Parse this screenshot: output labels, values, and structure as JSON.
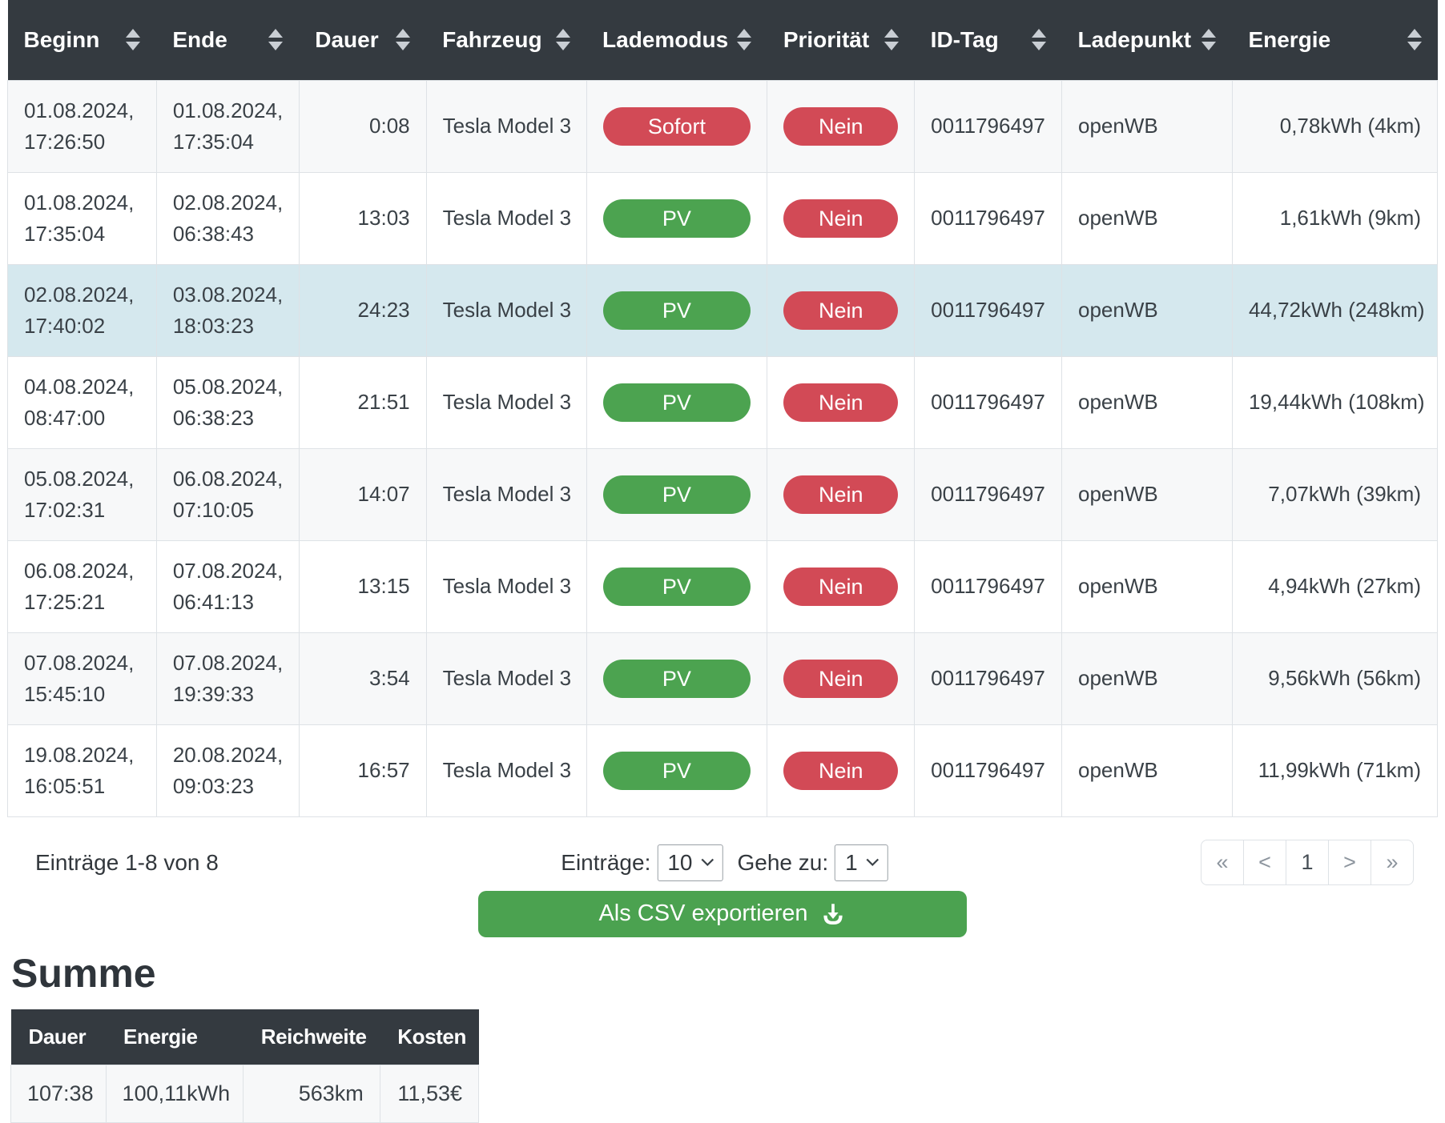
{
  "colors": {
    "header_bg": "#343a40",
    "text": "#3a4147",
    "border": "#dee2e6",
    "row_stripe": "#f7f8f9",
    "row_highlight": "#d5e8ee",
    "badge_red": "#d24a56",
    "badge_green": "#4ca350",
    "button_green": "#4ba250",
    "page_btn_text": "#8d959e",
    "page_btn_active_text": "#474f56"
  },
  "icons": {
    "header_sort": "sort-arrows-icon",
    "select_caret": "chevron-down-icon",
    "export": "download-icon"
  },
  "table": {
    "columns": [
      {
        "id": "beginn",
        "label": "Beginn",
        "width_pct": 10.41
      },
      {
        "id": "ende",
        "label": "Ende",
        "width_pct": 9.97
      },
      {
        "id": "dauer",
        "label": "Dauer",
        "width_pct": 8.9
      },
      {
        "id": "fahrzeug",
        "label": "Fahrzeug",
        "width_pct": 11.2
      },
      {
        "id": "lademodus",
        "label": "Lademodus",
        "width_pct": 12.65
      },
      {
        "id": "prioritaet",
        "label": "Priorität",
        "width_pct": 10.3
      },
      {
        "id": "id_tag",
        "label": "ID-Tag",
        "width_pct": 10.3
      },
      {
        "id": "ladepunkt",
        "label": "Ladepunkt",
        "width_pct": 11.93
      },
      {
        "id": "energie",
        "label": "Energie",
        "width_pct": 14.34
      }
    ],
    "rows": [
      {
        "beginn": "01.08.2024, 17:26:50",
        "ende": "01.08.2024, 17:35:04",
        "dauer": "0:08",
        "fahrzeug": "Tesla Model 3",
        "lademodus": {
          "label": "Sofort",
          "color": "red"
        },
        "prioritaet": {
          "label": "Nein",
          "color": "red"
        },
        "id_tag": "0011796497",
        "ladepunkt": "openWB",
        "energie": "0,78kWh (4km)",
        "highlighted": false
      },
      {
        "beginn": "01.08.2024, 17:35:04",
        "ende": "02.08.2024, 06:38:43",
        "dauer": "13:03",
        "fahrzeug": "Tesla Model 3",
        "lademodus": {
          "label": "PV",
          "color": "green"
        },
        "prioritaet": {
          "label": "Nein",
          "color": "red"
        },
        "id_tag": "0011796497",
        "ladepunkt": "openWB",
        "energie": "1,61kWh (9km)",
        "highlighted": false
      },
      {
        "beginn": "02.08.2024, 17:40:02",
        "ende": "03.08.2024, 18:03:23",
        "dauer": "24:23",
        "fahrzeug": "Tesla Model 3",
        "lademodus": {
          "label": "PV",
          "color": "green"
        },
        "prioritaet": {
          "label": "Nein",
          "color": "red"
        },
        "id_tag": "0011796497",
        "ladepunkt": "openWB",
        "energie": "44,72kWh (248km)",
        "highlighted": true
      },
      {
        "beginn": "04.08.2024, 08:47:00",
        "ende": "05.08.2024, 06:38:23",
        "dauer": "21:51",
        "fahrzeug": "Tesla Model 3",
        "lademodus": {
          "label": "PV",
          "color": "green"
        },
        "prioritaet": {
          "label": "Nein",
          "color": "red"
        },
        "id_tag": "0011796497",
        "ladepunkt": "openWB",
        "energie": "19,44kWh (108km)",
        "highlighted": false
      },
      {
        "beginn": "05.08.2024, 17:02:31",
        "ende": "06.08.2024, 07:10:05",
        "dauer": "14:07",
        "fahrzeug": "Tesla Model 3",
        "lademodus": {
          "label": "PV",
          "color": "green"
        },
        "prioritaet": {
          "label": "Nein",
          "color": "red"
        },
        "id_tag": "0011796497",
        "ladepunkt": "openWB",
        "energie": "7,07kWh (39km)",
        "highlighted": false
      },
      {
        "beginn": "06.08.2024, 17:25:21",
        "ende": "07.08.2024, 06:41:13",
        "dauer": "13:15",
        "fahrzeug": "Tesla Model 3",
        "lademodus": {
          "label": "PV",
          "color": "green"
        },
        "prioritaet": {
          "label": "Nein",
          "color": "red"
        },
        "id_tag": "0011796497",
        "ladepunkt": "openWB",
        "energie": "4,94kWh (27km)",
        "highlighted": false
      },
      {
        "beginn": "07.08.2024, 15:45:10",
        "ende": "07.08.2024, 19:39:33",
        "dauer": "3:54",
        "fahrzeug": "Tesla Model 3",
        "lademodus": {
          "label": "PV",
          "color": "green"
        },
        "prioritaet": {
          "label": "Nein",
          "color": "red"
        },
        "id_tag": "0011796497",
        "ladepunkt": "openWB",
        "energie": "9,56kWh (56km)",
        "highlighted": false
      },
      {
        "beginn": "19.08.2024, 16:05:51",
        "ende": "20.08.2024, 09:03:23",
        "dauer": "16:57",
        "fahrzeug": "Tesla Model 3",
        "lademodus": {
          "label": "PV",
          "color": "green"
        },
        "prioritaet": {
          "label": "Nein",
          "color": "red"
        },
        "id_tag": "0011796497",
        "ladepunkt": "openWB",
        "energie": "11,99kWh (71km)",
        "highlighted": false
      }
    ]
  },
  "pagination": {
    "info": "Einträge 1-8 von 8",
    "page_size_label": "Einträge:",
    "page_size_value": "10",
    "goto_label": "Gehe zu:",
    "goto_value": "1",
    "buttons": [
      {
        "name": "first",
        "label": "«",
        "active": false
      },
      {
        "name": "prev",
        "label": "<",
        "active": false
      },
      {
        "name": "page-1",
        "label": "1",
        "active": true
      },
      {
        "name": "next",
        "label": ">",
        "active": false
      },
      {
        "name": "last",
        "label": "»",
        "active": false
      }
    ]
  },
  "export_button": {
    "label": "Als CSV exportieren"
  },
  "summary": {
    "title": "Summe",
    "columns": [
      {
        "id": "dauer",
        "label": "Dauer",
        "width_pct": 20.3
      },
      {
        "id": "energie",
        "label": "Energie",
        "width_pct": 29.4
      },
      {
        "id": "reichweite",
        "label": "Reichweite",
        "width_pct": 29.2
      },
      {
        "id": "kosten",
        "label": "Kosten",
        "width_pct": 21.1
      }
    ],
    "values": {
      "dauer": "107:38",
      "energie": "100,11kWh",
      "reichweite": "563km",
      "kosten": "11,53€"
    }
  }
}
